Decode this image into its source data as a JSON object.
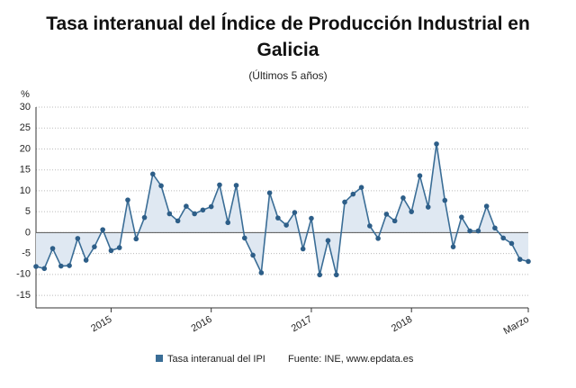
{
  "chart_data": {
    "type": "line",
    "title": "Tasa interanual del Índice de Producción Industrial en Galicia",
    "subtitle": "(Últimos 5 años)",
    "y_label": "%",
    "source": "Fuente: INE, www.epdata.es",
    "categories": [
      null,
      null,
      null,
      null,
      null,
      null,
      null,
      null,
      null,
      "2015",
      null,
      null,
      null,
      null,
      null,
      null,
      null,
      null,
      null,
      null,
      null,
      "2016",
      null,
      null,
      null,
      null,
      null,
      null,
      null,
      null,
      null,
      null,
      null,
      "2017",
      null,
      null,
      null,
      null,
      null,
      null,
      null,
      null,
      null,
      null,
      null,
      "2018",
      null,
      null,
      null,
      null,
      null,
      null,
      null,
      null,
      null,
      null,
      null,
      null,
      null,
      "Marzo"
    ],
    "series": [
      {
        "name": "Tasa interanual del IPI",
        "color": "#3a6d96",
        "fill": "#dfe8f2",
        "values": [
          -8.1,
          -8.6,
          -3.8,
          -8,
          -7.9,
          -1.4,
          -6.6,
          -3.4,
          0.7,
          -4.3,
          -3.6,
          7.8,
          -1.5,
          3.6,
          14,
          11.2,
          4.5,
          2.8,
          6.3,
          4.5,
          5.4,
          6.2,
          11.4,
          2.4,
          11.3,
          -1.3,
          -5.4,
          -9.6,
          9.5,
          3.5,
          1.8,
          4.8,
          -3.9,
          3.4,
          -10.1,
          -1.9,
          -10.1,
          7.3,
          9.2,
          10.8,
          1.6,
          -1.4,
          4.4,
          2.8,
          8.3,
          5,
          13.6,
          6.1,
          21.2,
          7.7,
          -3.4,
          3.7,
          0.4,
          0.4,
          6.3,
          1.1,
          -1.3,
          -2.6,
          -6.4,
          -6.9
        ]
      }
    ],
    "ylim": [
      -18,
      30
    ],
    "yticks": [
      -15,
      -10,
      -5,
      0,
      5,
      10,
      15,
      20,
      25,
      30
    ],
    "grid": true
  }
}
